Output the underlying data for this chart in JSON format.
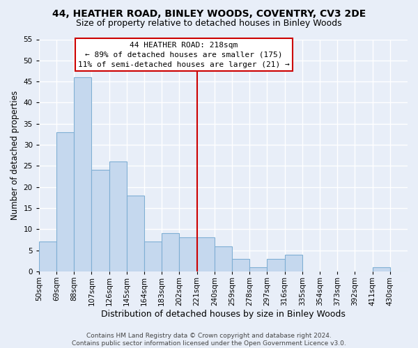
{
  "title": "44, HEATHER ROAD, BINLEY WOODS, COVENTRY, CV3 2DE",
  "subtitle": "Size of property relative to detached houses in Binley Woods",
  "xlabel": "Distribution of detached houses by size in Binley Woods",
  "ylabel": "Number of detached properties",
  "footer_lines": [
    "Contains HM Land Registry data © Crown copyright and database right 2024.",
    "Contains public sector information licensed under the Open Government Licence v3.0."
  ],
  "bin_labels": [
    "50sqm",
    "69sqm",
    "88sqm",
    "107sqm",
    "126sqm",
    "145sqm",
    "164sqm",
    "183sqm",
    "202sqm",
    "221sqm",
    "240sqm",
    "259sqm",
    "278sqm",
    "297sqm",
    "316sqm",
    "335sqm",
    "354sqm",
    "373sqm",
    "392sqm",
    "411sqm",
    "430sqm"
  ],
  "bin_left_edges": [
    50,
    69,
    88,
    107,
    126,
    145,
    164,
    183,
    202,
    221,
    240,
    259,
    278,
    297,
    316,
    335,
    354,
    373,
    392,
    411,
    430
  ],
  "bin_width": 19,
  "bar_heights": [
    7,
    33,
    46,
    24,
    26,
    18,
    7,
    9,
    8,
    8,
    6,
    3,
    1,
    3,
    4,
    0,
    0,
    0,
    0,
    1,
    0
  ],
  "bar_color": "#c5d8ee",
  "bar_edge_color": "#7fafd4",
  "vline_x": 221,
  "vline_color": "#cc0000",
  "annotation_line1": "44 HEATHER ROAD: 218sqm",
  "annotation_line2": "← 89% of detached houses are smaller (175)",
  "annotation_line3": "11% of semi-detached houses are larger (21) →",
  "annotation_box_color": "white",
  "annotation_box_edge": "#cc0000",
  "ylim": [
    0,
    55
  ],
  "yticks": [
    0,
    5,
    10,
    15,
    20,
    25,
    30,
    35,
    40,
    45,
    50,
    55
  ],
  "background_color": "#e8eef8",
  "grid_color": "white",
  "title_fontsize": 10,
  "subtitle_fontsize": 9,
  "xlabel_fontsize": 9,
  "ylabel_fontsize": 8.5,
  "tick_fontsize": 7.5,
  "annot_fontsize": 8,
  "footer_fontsize": 6.5
}
